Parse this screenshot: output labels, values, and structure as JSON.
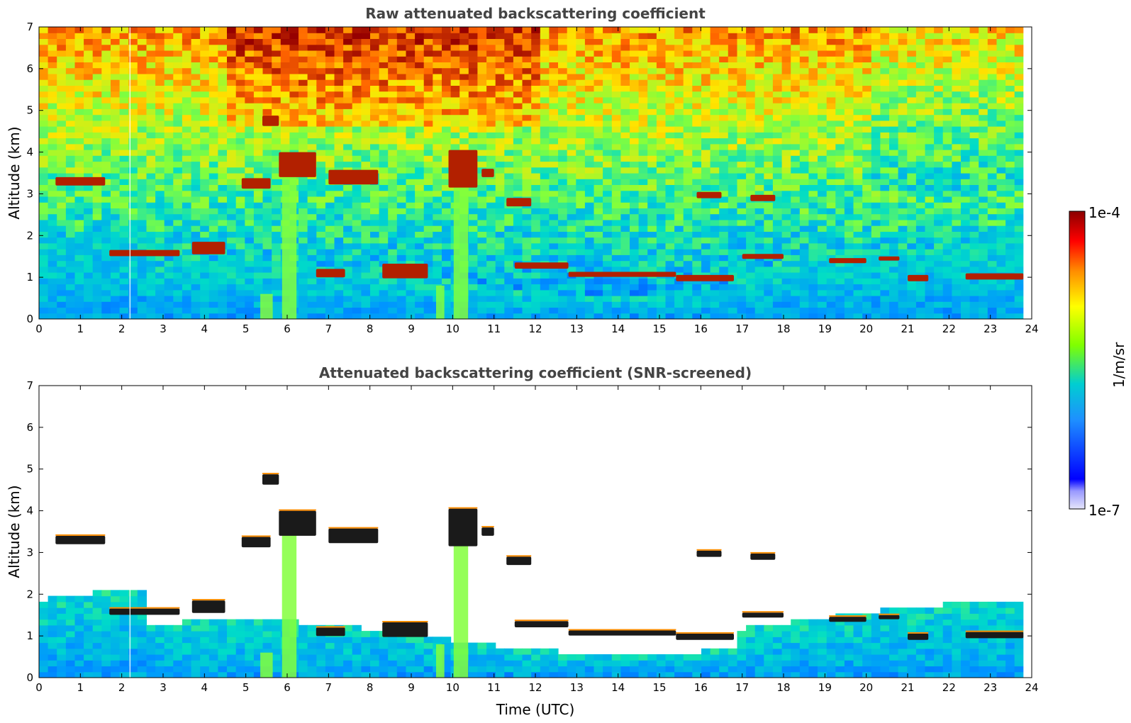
{
  "chart_data": [
    {
      "type": "heatmap",
      "title": "Raw attenuated backscattering coefficient",
      "xlabel": "",
      "ylabel": "Altitude (km)",
      "xlim": [
        0,
        24
      ],
      "ylim": [
        0,
        7
      ],
      "xticks": [
        0,
        1,
        2,
        3,
        4,
        5,
        6,
        7,
        8,
        9,
        10,
        11,
        12,
        13,
        14,
        15,
        16,
        17,
        18,
        19,
        20,
        21,
        22,
        23,
        24
      ],
      "yticks": [
        0,
        1,
        2,
        3,
        4,
        5,
        6,
        7
      ],
      "noise": "high",
      "cloud_layers": [
        {
          "t0": 0.4,
          "t1": 1.6,
          "alt": 3.3,
          "thick": 0.2
        },
        {
          "t0": 1.7,
          "t1": 3.4,
          "alt": 1.58,
          "thick": 0.15
        },
        {
          "t0": 3.7,
          "t1": 4.5,
          "alt": 1.7,
          "thick": 0.3
        },
        {
          "t0": 5.4,
          "t1": 5.8,
          "alt": 4.75,
          "thick": 0.25
        },
        {
          "t0": 4.9,
          "t1": 5.6,
          "alt": 3.25,
          "thick": 0.25
        },
        {
          "t0": 5.8,
          "t1": 6.7,
          "alt": 3.7,
          "thick": 0.6
        },
        {
          "t0": 6.7,
          "t1": 7.4,
          "alt": 1.1,
          "thick": 0.2
        },
        {
          "t0": 7.0,
          "t1": 8.2,
          "alt": 3.4,
          "thick": 0.35
        },
        {
          "t0": 8.3,
          "t1": 9.4,
          "alt": 1.15,
          "thick": 0.35
        },
        {
          "t0": 9.9,
          "t1": 10.6,
          "alt": 3.6,
          "thick": 0.9
        },
        {
          "t0": 10.7,
          "t1": 11.0,
          "alt": 3.5,
          "thick": 0.2
        },
        {
          "t0": 11.3,
          "t1": 11.9,
          "alt": 2.8,
          "thick": 0.2
        },
        {
          "t0": 11.5,
          "t1": 12.8,
          "alt": 1.28,
          "thick": 0.15
        },
        {
          "t0": 12.8,
          "t1": 15.4,
          "alt": 1.07,
          "thick": 0.12
        },
        {
          "t0": 15.4,
          "t1": 16.8,
          "alt": 0.98,
          "thick": 0.15
        },
        {
          "t0": 15.9,
          "t1": 16.5,
          "alt": 2.97,
          "thick": 0.15
        },
        {
          "t0": 17.0,
          "t1": 18.0,
          "alt": 1.5,
          "thick": 0.12
        },
        {
          "t0": 17.2,
          "t1": 17.8,
          "alt": 2.9,
          "thick": 0.15
        },
        {
          "t0": 19.1,
          "t1": 20.0,
          "alt": 1.4,
          "thick": 0.12
        },
        {
          "t0": 20.3,
          "t1": 20.8,
          "alt": 1.45,
          "thick": 0.1
        },
        {
          "t0": 21.0,
          "t1": 21.5,
          "alt": 0.98,
          "thick": 0.15
        },
        {
          "t0": 22.4,
          "t1": 23.8,
          "alt": 1.02,
          "thick": 0.15
        }
      ],
      "aerosol_columns": [
        {
          "t": 6.05,
          "top": 3.5,
          "width": 0.35
        },
        {
          "t": 10.2,
          "top": 3.2,
          "width": 0.35
        },
        {
          "t": 5.5,
          "top": 0.6,
          "width": 0.3
        },
        {
          "t": 9.7,
          "top": 0.8,
          "width": 0.2
        }
      ]
    },
    {
      "type": "heatmap",
      "title": "Attenuated backscattering coefficient (SNR-screened)",
      "xlabel": "Time (UTC)",
      "ylabel": "Altitude (km)",
      "xlim": [
        0,
        24
      ],
      "ylim": [
        0,
        7
      ],
      "xticks": [
        0,
        1,
        2,
        3,
        4,
        5,
        6,
        7,
        8,
        9,
        10,
        11,
        12,
        13,
        14,
        15,
        16,
        17,
        18,
        19,
        20,
        21,
        22,
        23,
        24
      ],
      "yticks": [
        0,
        1,
        2,
        3,
        4,
        5,
        6,
        7
      ],
      "noise": "screened",
      "cloud_layers": [
        {
          "t0": 0.4,
          "t1": 1.6,
          "alt": 3.3,
          "thick": 0.2
        },
        {
          "t0": 1.7,
          "t1": 3.4,
          "alt": 1.58,
          "thick": 0.15
        },
        {
          "t0": 3.7,
          "t1": 4.5,
          "alt": 1.7,
          "thick": 0.3
        },
        {
          "t0": 5.4,
          "t1": 5.8,
          "alt": 4.75,
          "thick": 0.25
        },
        {
          "t0": 4.9,
          "t1": 5.6,
          "alt": 3.25,
          "thick": 0.25
        },
        {
          "t0": 5.8,
          "t1": 6.7,
          "alt": 3.7,
          "thick": 0.6
        },
        {
          "t0": 6.7,
          "t1": 7.4,
          "alt": 1.1,
          "thick": 0.2
        },
        {
          "t0": 7.0,
          "t1": 8.2,
          "alt": 3.4,
          "thick": 0.35
        },
        {
          "t0": 8.3,
          "t1": 9.4,
          "alt": 1.15,
          "thick": 0.35
        },
        {
          "t0": 9.9,
          "t1": 10.6,
          "alt": 3.6,
          "thick": 0.9
        },
        {
          "t0": 10.7,
          "t1": 11.0,
          "alt": 3.5,
          "thick": 0.2
        },
        {
          "t0": 11.3,
          "t1": 11.9,
          "alt": 2.8,
          "thick": 0.2
        },
        {
          "t0": 11.5,
          "t1": 12.8,
          "alt": 1.28,
          "thick": 0.15
        },
        {
          "t0": 12.8,
          "t1": 15.4,
          "alt": 1.07,
          "thick": 0.12
        },
        {
          "t0": 15.4,
          "t1": 16.8,
          "alt": 0.98,
          "thick": 0.15
        },
        {
          "t0": 15.9,
          "t1": 16.5,
          "alt": 2.97,
          "thick": 0.15
        },
        {
          "t0": 17.0,
          "t1": 18.0,
          "alt": 1.5,
          "thick": 0.12
        },
        {
          "t0": 17.2,
          "t1": 17.8,
          "alt": 2.9,
          "thick": 0.15
        },
        {
          "t0": 19.1,
          "t1": 20.0,
          "alt": 1.4,
          "thick": 0.12
        },
        {
          "t0": 20.3,
          "t1": 20.8,
          "alt": 1.45,
          "thick": 0.1
        },
        {
          "t0": 21.0,
          "t1": 21.5,
          "alt": 0.98,
          "thick": 0.15
        },
        {
          "t0": 22.4,
          "t1": 23.8,
          "alt": 1.02,
          "thick": 0.15
        }
      ],
      "aerosol_columns": [
        {
          "t": 6.05,
          "top": 3.5,
          "width": 0.35
        },
        {
          "t": 10.2,
          "top": 3.2,
          "width": 0.35
        },
        {
          "t": 5.5,
          "top": 0.6,
          "width": 0.3
        },
        {
          "t": 9.7,
          "top": 0.8,
          "width": 0.2
        }
      ]
    }
  ],
  "colorbar": {
    "label": "1/m/sr",
    "max_label": "1e-4",
    "min_label": "1e-7",
    "colormap": "jet",
    "colors": [
      "#e6e6fa",
      "#0000ff",
      "#00bfff",
      "#40e0d0",
      "#7fff00",
      "#ffff00",
      "#ff8c00",
      "#ff0000",
      "#8b0000"
    ]
  },
  "data_end_time": 23.8
}
